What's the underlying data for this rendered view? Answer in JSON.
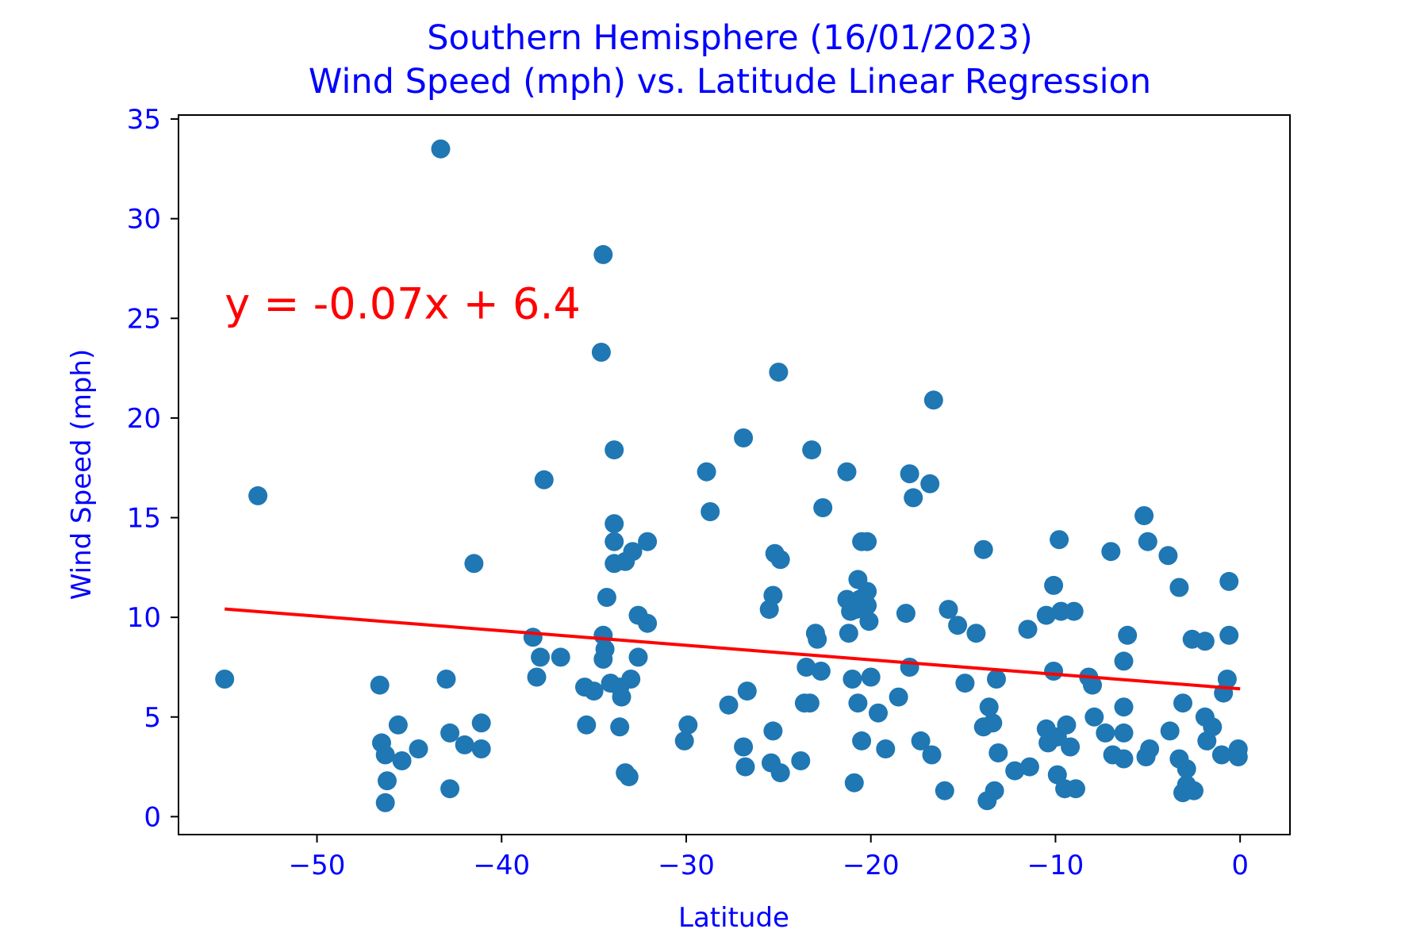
{
  "colors": {
    "text": "#0000ff",
    "points": "#1f77b4",
    "regression": "#ff0000",
    "frame": "#000000",
    "background": "#ffffff"
  },
  "chart_data": {
    "type": "scatter",
    "title": "Southern Hemisphere (16/01/2023)",
    "subtitle": "Wind Speed (mph) vs. Latitude Linear Regression",
    "xlabel": "Latitude",
    "ylabel": "Wind Speed (mph)",
    "xlim": [
      -57.5,
      2.7
    ],
    "ylim": [
      -0.9,
      35.2
    ],
    "xticks": [
      -50,
      -40,
      -30,
      -20,
      -10,
      0
    ],
    "xtick_labels": [
      "−50",
      "−40",
      "−30",
      "−20",
      "−10",
      "0"
    ],
    "yticks": [
      0,
      5,
      10,
      15,
      20,
      25,
      30,
      35
    ],
    "ytick_labels": [
      "0",
      "5",
      "10",
      "15",
      "20",
      "25",
      "30",
      "35"
    ],
    "grid": false,
    "annotation": {
      "text": "y = -0.07x + 6.4",
      "x": -55,
      "y": 25
    },
    "regression": {
      "slope": -0.0729,
      "intercept": 6.41,
      "x_range": [
        -55.0,
        0.0
      ]
    },
    "points": [
      [
        -55.0,
        6.9
      ],
      [
        -53.2,
        16.1
      ],
      [
        -46.6,
        6.6
      ],
      [
        -46.5,
        3.7
      ],
      [
        -46.3,
        3.1
      ],
      [
        -46.2,
        1.8
      ],
      [
        -46.3,
        0.7
      ],
      [
        -45.6,
        4.6
      ],
      [
        -45.4,
        2.8
      ],
      [
        -44.5,
        3.4
      ],
      [
        -43.3,
        33.5
      ],
      [
        -43.0,
        6.9
      ],
      [
        -42.8,
        4.2
      ],
      [
        -42.8,
        1.4
      ],
      [
        -42.0,
        3.6
      ],
      [
        -41.5,
        12.7
      ],
      [
        -41.1,
        4.7
      ],
      [
        -41.1,
        3.4
      ],
      [
        -38.3,
        9.0
      ],
      [
        -38.1,
        7.0
      ],
      [
        -37.9,
        8.0
      ],
      [
        -37.7,
        16.9
      ],
      [
        -36.8,
        8.0
      ],
      [
        -35.5,
        6.5
      ],
      [
        -35.4,
        4.6
      ],
      [
        -35.0,
        6.3
      ],
      [
        -34.6,
        23.3
      ],
      [
        -34.5,
        9.1
      ],
      [
        -34.5,
        28.2
      ],
      [
        -34.5,
        7.9
      ],
      [
        -34.4,
        8.4
      ],
      [
        -34.3,
        11.0
      ],
      [
        -34.1,
        6.7
      ],
      [
        -33.9,
        18.4
      ],
      [
        -33.9,
        14.7
      ],
      [
        -33.9,
        13.8
      ],
      [
        -33.9,
        12.7
      ],
      [
        -33.6,
        4.5
      ],
      [
        -33.6,
        6.5
      ],
      [
        -33.5,
        6.0
      ],
      [
        -33.3,
        12.8
      ],
      [
        -33.3,
        2.2
      ],
      [
        -33.1,
        2.0
      ],
      [
        -33.0,
        6.9
      ],
      [
        -32.9,
        13.3
      ],
      [
        -32.6,
        10.1
      ],
      [
        -32.6,
        8.0
      ],
      [
        -32.1,
        13.8
      ],
      [
        -32.1,
        9.7
      ],
      [
        -30.1,
        3.8
      ],
      [
        -29.9,
        4.6
      ],
      [
        -28.9,
        17.3
      ],
      [
        -28.7,
        15.3
      ],
      [
        -27.7,
        5.6
      ],
      [
        -26.9,
        19.0
      ],
      [
        -26.9,
        3.5
      ],
      [
        -26.8,
        2.5
      ],
      [
        -26.7,
        6.3
      ],
      [
        -25.5,
        10.4
      ],
      [
        -25.4,
        2.7
      ],
      [
        -25.3,
        4.3
      ],
      [
        -25.3,
        11.1
      ],
      [
        -25.2,
        13.2
      ],
      [
        -25.0,
        22.3
      ],
      [
        -24.9,
        12.9
      ],
      [
        -24.9,
        2.2
      ],
      [
        -23.8,
        2.8
      ],
      [
        -23.6,
        5.7
      ],
      [
        -23.5,
        7.5
      ],
      [
        -23.3,
        5.7
      ],
      [
        -23.2,
        18.4
      ],
      [
        -23.0,
        9.2
      ],
      [
        -22.9,
        8.9
      ],
      [
        -22.7,
        7.3
      ],
      [
        -22.6,
        15.5
      ],
      [
        -21.3,
        17.3
      ],
      [
        -21.3,
        10.9
      ],
      [
        -21.2,
        9.2
      ],
      [
        -21.1,
        10.3
      ],
      [
        -21.0,
        6.9
      ],
      [
        -20.9,
        1.7
      ],
      [
        -20.8,
        10.4
      ],
      [
        -20.7,
        5.7
      ],
      [
        -20.7,
        11.9
      ],
      [
        -20.6,
        10.9
      ],
      [
        -20.5,
        3.8
      ],
      [
        -20.5,
        13.8
      ],
      [
        -20.4,
        10.4
      ],
      [
        -20.2,
        13.8
      ],
      [
        -20.2,
        10.6
      ],
      [
        -20.2,
        11.3
      ],
      [
        -20.1,
        9.8
      ],
      [
        -20.0,
        7.0
      ],
      [
        -19.6,
        5.2
      ],
      [
        -19.2,
        3.4
      ],
      [
        -18.5,
        6.0
      ],
      [
        -18.1,
        10.2
      ],
      [
        -17.9,
        7.5
      ],
      [
        -17.9,
        17.2
      ],
      [
        -17.7,
        16.0
      ],
      [
        -17.3,
        3.8
      ],
      [
        -16.8,
        16.7
      ],
      [
        -16.7,
        3.1
      ],
      [
        -16.6,
        20.9
      ],
      [
        -16.0,
        1.3
      ],
      [
        -15.8,
        10.4
      ],
      [
        -15.3,
        9.6
      ],
      [
        -14.9,
        6.7
      ],
      [
        -14.3,
        9.2
      ],
      [
        -13.9,
        13.4
      ],
      [
        -13.9,
        4.5
      ],
      [
        -13.7,
        0.8
      ],
      [
        -13.6,
        5.5
      ],
      [
        -13.4,
        4.7
      ],
      [
        -13.3,
        1.3
      ],
      [
        -13.2,
        6.9
      ],
      [
        -13.1,
        3.2
      ],
      [
        -12.2,
        2.3
      ],
      [
        -11.5,
        9.4
      ],
      [
        -11.4,
        2.5
      ],
      [
        -10.5,
        10.1
      ],
      [
        -10.5,
        4.4
      ],
      [
        -10.4,
        3.7
      ],
      [
        -10.1,
        11.6
      ],
      [
        -10.1,
        7.3
      ],
      [
        -9.9,
        4.0
      ],
      [
        -9.9,
        2.1
      ],
      [
        -9.8,
        13.9
      ],
      [
        -9.7,
        10.3
      ],
      [
        -9.4,
        4.6
      ],
      [
        -9.5,
        1.4
      ],
      [
        -9.2,
        3.5
      ],
      [
        -9.0,
        10.3
      ],
      [
        -8.9,
        1.4
      ],
      [
        -8.2,
        7.0
      ],
      [
        -8.0,
        6.6
      ],
      [
        -7.9,
        5.0
      ],
      [
        -7.3,
        4.2
      ],
      [
        -7.0,
        13.3
      ],
      [
        -6.9,
        3.1
      ],
      [
        -6.3,
        7.8
      ],
      [
        -6.3,
        5.5
      ],
      [
        -6.3,
        4.2
      ],
      [
        -6.3,
        2.9
      ],
      [
        -6.1,
        9.1
      ],
      [
        -5.2,
        15.1
      ],
      [
        -5.1,
        3.0
      ],
      [
        -5.0,
        13.8
      ],
      [
        -4.9,
        3.4
      ],
      [
        -3.9,
        13.1
      ],
      [
        -3.8,
        4.3
      ],
      [
        -3.3,
        11.5
      ],
      [
        -3.3,
        2.9
      ],
      [
        -3.1,
        5.7
      ],
      [
        -3.1,
        1.2
      ],
      [
        -2.9,
        2.4
      ],
      [
        -2.9,
        1.6
      ],
      [
        -2.6,
        8.9
      ],
      [
        -2.5,
        1.3
      ],
      [
        -1.9,
        8.8
      ],
      [
        -1.9,
        5.0
      ],
      [
        -1.8,
        3.8
      ],
      [
        -1.5,
        4.5
      ],
      [
        -1.0,
        3.1
      ],
      [
        -0.9,
        6.2
      ],
      [
        -0.7,
        6.9
      ],
      [
        -0.6,
        9.1
      ],
      [
        -0.6,
        11.8
      ],
      [
        -0.1,
        3.4
      ],
      [
        -0.1,
        3.0
      ]
    ]
  }
}
